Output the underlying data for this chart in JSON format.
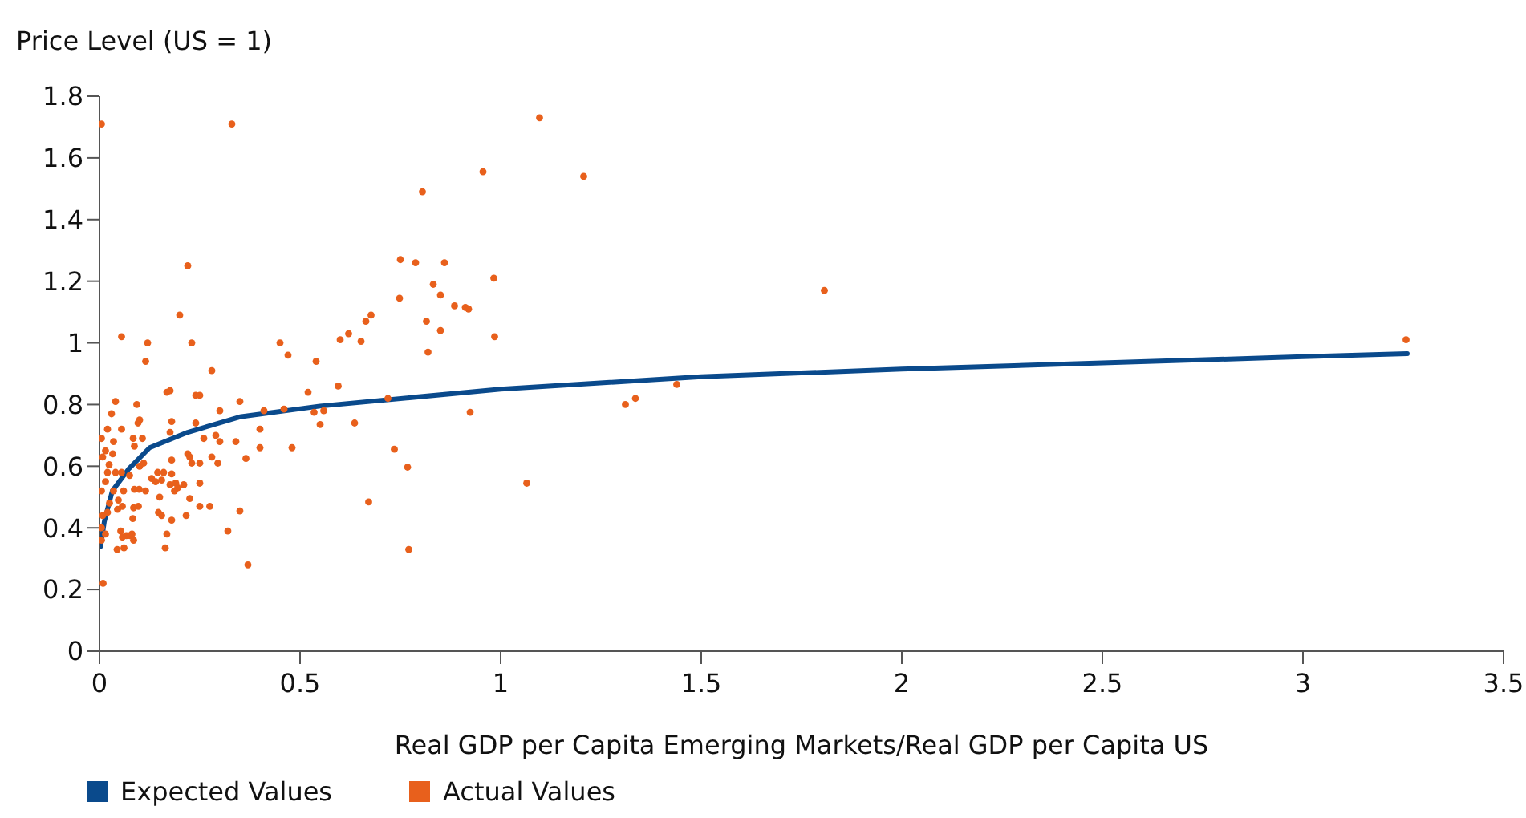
{
  "chart_data": {
    "type": "scatter",
    "ylabel": "Price Level (US = 1)",
    "xlabel": "Real GDP per Capita Emerging Markets/Real GDP per Capita US",
    "xlim": [
      0,
      3.5
    ],
    "xticks": [
      0,
      0.5,
      1,
      1.5,
      2,
      2.5,
      3,
      3.5
    ],
    "ylim": [
      0,
      1.8
    ],
    "yticks": [
      0,
      0.2,
      0.4,
      0.6,
      0.8,
      1,
      1.2,
      1.4,
      1.6,
      1.8
    ],
    "grid": false,
    "legend": "bottom left",
    "series": [
      {
        "name": "Expected Values",
        "type": "line",
        "color": "#0a4a8c",
        "marker": "none",
        "line_style": "solid",
        "x": [
          0.003,
          0.012,
          0.032,
          0.072,
          0.125,
          0.22,
          0.35,
          0.55,
          1,
          1.5,
          2,
          2.5,
          3,
          3.26
        ],
        "values": [
          0.34,
          0.42,
          0.52,
          0.59,
          0.66,
          0.71,
          0.76,
          0.795,
          0.85,
          0.89,
          0.915,
          0.935,
          0.955,
          0.965
        ]
      },
      {
        "name": "Actual Values",
        "color": "#e8601c",
        "marker": "circle",
        "x": [
          0.005,
          0.33,
          0.22,
          0.2,
          0.055,
          0.12,
          0.23,
          0.115,
          0.28,
          0.45,
          0.47,
          0.54,
          0.52,
          0.04,
          0.093,
          0.176,
          0.168,
          0.24,
          0.25,
          0.35,
          0.03,
          0.1,
          0.096,
          0.18,
          0.24,
          0.3,
          0.41,
          0.46,
          0.02,
          0.055,
          0.084,
          0.107,
          0.005,
          0.035,
          0.087,
          0.176,
          0.26,
          0.29,
          0.3,
          0.4,
          0.34,
          0.4,
          0.48,
          0.55,
          0.015,
          0.033,
          0.18,
          0.22,
          0.225,
          0.23,
          0.25,
          0.28,
          0.295,
          0.365,
          0.024,
          0.1,
          0.11,
          0.008,
          0.02,
          0.015,
          0.04,
          0.055,
          0.075,
          0.13,
          0.145,
          0.16,
          0.14,
          0.155,
          0.18,
          0.176,
          0.19,
          0.21,
          0.187,
          0.195,
          0.25,
          0.06,
          0.087,
          0.099,
          0.115,
          0.005,
          0.035,
          0.225,
          0.15,
          0.047,
          0.057,
          0.045,
          0.085,
          0.097,
          0.025,
          0.02,
          0.008,
          0.216,
          0.25,
          0.275,
          0.147,
          0.155,
          0.18,
          0.083,
          0.35,
          0.005,
          0.015,
          0.005,
          0.053,
          0.057,
          0.067,
          0.076,
          0.044,
          0.061,
          0.081,
          0.085,
          0.168,
          0.164,
          0.32,
          0.37,
          0.009,
          1.097,
          0.956,
          1.207,
          0.805,
          0.75,
          0.788,
          0.86,
          0.832,
          0.983,
          0.748,
          0.85,
          0.885,
          0.912,
          0.92,
          0.677,
          0.664,
          0.815,
          0.621,
          0.6,
          0.652,
          0.985,
          0.85,
          0.819,
          0.595,
          0.719,
          0.535,
          0.559,
          0.636,
          0.924,
          0.735,
          0.768,
          0.671,
          1.065,
          0.771,
          1.311,
          1.336,
          1.439,
          1.807,
          3.257
        ],
        "values": [
          1.71,
          1.71,
          1.25,
          1.09,
          1.02,
          1.0,
          1.0,
          0.94,
          0.91,
          1.0,
          0.96,
          0.94,
          0.84,
          0.81,
          0.8,
          0.845,
          0.84,
          0.83,
          0.83,
          0.81,
          0.77,
          0.75,
          0.74,
          0.745,
          0.74,
          0.78,
          0.78,
          0.785,
          0.72,
          0.72,
          0.69,
          0.69,
          0.69,
          0.68,
          0.665,
          0.71,
          0.69,
          0.7,
          0.68,
          0.72,
          0.68,
          0.66,
          0.66,
          0.735,
          0.65,
          0.64,
          0.62,
          0.64,
          0.63,
          0.61,
          0.61,
          0.63,
          0.61,
          0.625,
          0.605,
          0.6,
          0.61,
          0.63,
          0.58,
          0.55,
          0.58,
          0.58,
          0.57,
          0.56,
          0.58,
          0.58,
          0.55,
          0.555,
          0.575,
          0.54,
          0.545,
          0.54,
          0.52,
          0.53,
          0.545,
          0.52,
          0.525,
          0.525,
          0.52,
          0.52,
          0.52,
          0.495,
          0.5,
          0.49,
          0.47,
          0.46,
          0.465,
          0.47,
          0.48,
          0.45,
          0.44,
          0.44,
          0.47,
          0.47,
          0.45,
          0.44,
          0.425,
          0.43,
          0.455,
          0.4,
          0.38,
          0.36,
          0.39,
          0.37,
          0.375,
          0.375,
          0.33,
          0.335,
          0.38,
          0.36,
          0.38,
          0.335,
          0.39,
          0.28,
          0.22,
          1.73,
          1.555,
          1.54,
          1.49,
          1.27,
          1.26,
          1.26,
          1.19,
          1.21,
          1.145,
          1.155,
          1.12,
          1.115,
          1.11,
          1.09,
          1.07,
          1.07,
          1.03,
          1.01,
          1.005,
          1.02,
          1.04,
          0.97,
          0.86,
          0.82,
          0.775,
          0.78,
          0.74,
          0.775,
          0.655,
          0.597,
          0.484,
          0.545,
          0.33,
          0.8,
          0.82,
          0.865,
          1.17,
          1.01
        ]
      }
    ]
  }
}
